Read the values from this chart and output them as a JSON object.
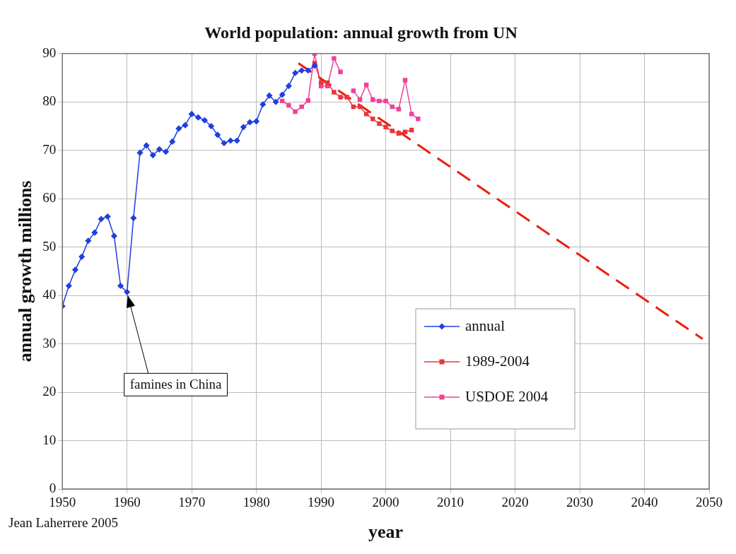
{
  "chart_data": {
    "type": "line",
    "title": "World population: annual growth from UN",
    "xlabel": "year",
    "ylabel": "annual growth millions",
    "xlim": [
      1950,
      2050
    ],
    "xticks": [
      1950,
      1960,
      1970,
      1980,
      1990,
      2000,
      2010,
      2020,
      2030,
      2040,
      2050
    ],
    "ylim": [
      0,
      90
    ],
    "yticks": [
      0,
      10,
      20,
      30,
      40,
      50,
      60,
      70,
      80,
      90
    ],
    "grid": true,
    "legend": "bottom right",
    "series": [
      {
        "name": "annual",
        "color": "#1f3fe0",
        "marker": "diamond",
        "x": [
          1950,
          1951,
          1952,
          1953,
          1954,
          1955,
          1956,
          1957,
          1958,
          1959,
          1960,
          1961,
          1962,
          1963,
          1964,
          1965,
          1966,
          1967,
          1968,
          1969,
          1970,
          1971,
          1972,
          1973,
          1974,
          1975,
          1976,
          1977,
          1978,
          1979,
          1980,
          1981,
          1982,
          1983,
          1984,
          1985,
          1986,
          1987,
          1988,
          1989
        ],
        "values": [
          37.8,
          42,
          45.3,
          48,
          51.3,
          53,
          55.8,
          56.3,
          52.3,
          42,
          40.7,
          56,
          69.5,
          71,
          69,
          70.2,
          69.7,
          71.8,
          74.5,
          75.2,
          77.5,
          76.8,
          76.2,
          75,
          73.2,
          71.5,
          72,
          72,
          74.8,
          75.8,
          76,
          79.5,
          81.3,
          80,
          81.5,
          83.3,
          86,
          86.5,
          86.5,
          87.5
        ]
      },
      {
        "name": "1989-2004",
        "color": "#e8363a",
        "marker": "square",
        "x": [
          1989,
          1990,
          1991,
          1992,
          1993,
          1994,
          1995,
          1996,
          1997,
          1998,
          1999,
          2000,
          2001,
          2002,
          2003,
          2004
        ],
        "values": [
          88,
          84,
          84,
          82,
          81,
          81,
          79,
          79,
          77.5,
          76.5,
          75.5,
          74.8,
          74,
          73.5,
          73.8,
          74.2
        ]
      },
      {
        "name": "USDOE 2004",
        "color": "#f0409a",
        "marker": "square",
        "x": [
          1984,
          1985,
          1986,
          1987,
          1988,
          1989,
          1990,
          1991,
          1992,
          1993,
          1994,
          1995,
          1996,
          1997,
          1998,
          1999,
          2000,
          2001,
          2002,
          2003,
          2004,
          2005
        ],
        "values": [
          80.2,
          79.3,
          78,
          79,
          80.3,
          90,
          83.3,
          83.3,
          89,
          86.2,
          null,
          82.3,
          80.5,
          83.5,
          80.5,
          80.2,
          80.2,
          79,
          78.5,
          84.5,
          77.5,
          76.5
        ]
      },
      {
        "type": "line",
        "color": "#e8200f",
        "marker": "none",
        "line_style": "dashed",
        "x": [
          1986.5,
          2049
        ],
        "values": [
          88,
          31
        ]
      }
    ],
    "annotations": [
      {
        "text": "famines in China",
        "x": 1960,
        "y": 40.7
      },
      "Jean Laherrere 2005"
    ]
  }
}
